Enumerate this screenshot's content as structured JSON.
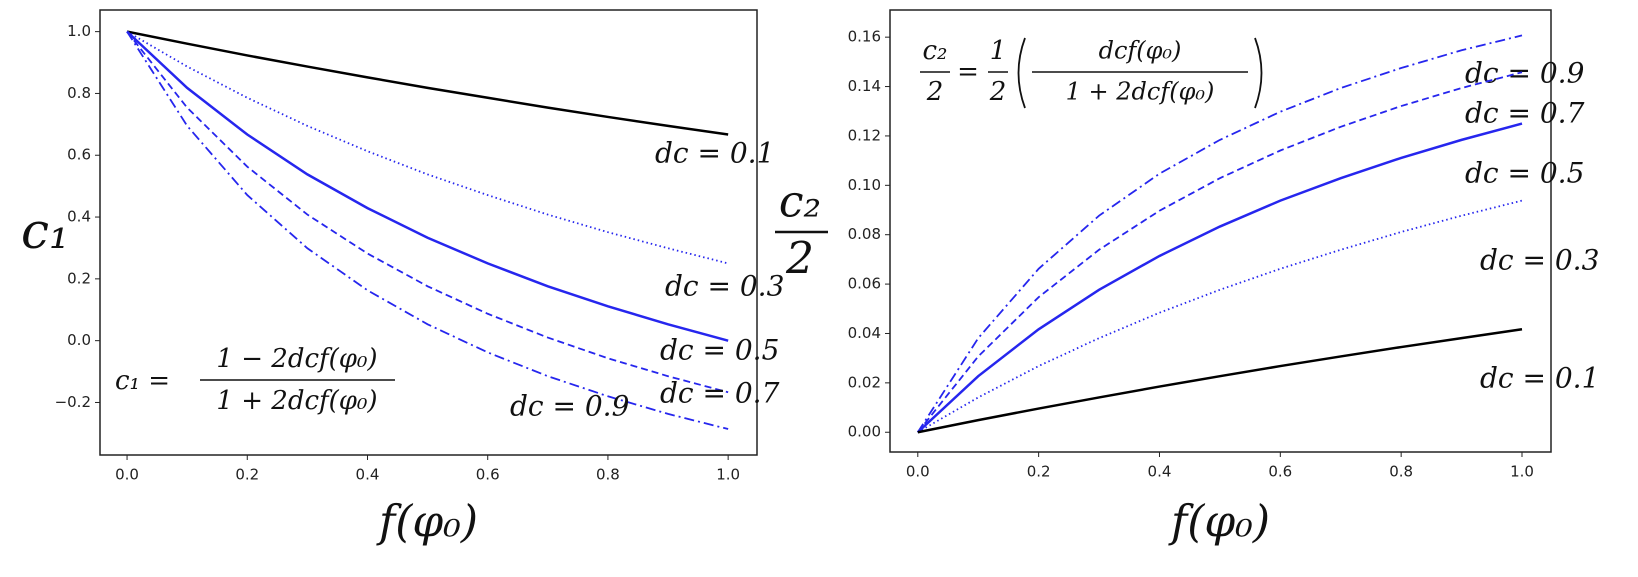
{
  "chart_data": [
    {
      "type": "line",
      "xlabel": "f(φ₀)",
      "ylabel": "c₁",
      "formula": {
        "lhs": "c₁ =",
        "numerator": "1 − 2dcf(φ₀)",
        "denominator": "1 + 2dcf(φ₀)"
      },
      "x": [
        0,
        0.1,
        0.2,
        0.3,
        0.4,
        0.5,
        0.6,
        0.7,
        0.8,
        0.9,
        1.0
      ],
      "xlim": [
        -0.045,
        1.048
      ],
      "ylim": [
        -0.37,
        1.07
      ],
      "xticks": [
        {
          "value": 0,
          "label": "0.0"
        },
        {
          "value": 0.2,
          "label": "0.2"
        },
        {
          "value": 0.4,
          "label": "0.4"
        },
        {
          "value": 0.6,
          "label": "0.6"
        },
        {
          "value": 0.8,
          "label": "0.8"
        },
        {
          "value": 1,
          "label": "1.0"
        }
      ],
      "yticks": [
        {
          "value": -0.2,
          "label": "−0.2"
        },
        {
          "value": 0,
          "label": "0.0"
        },
        {
          "value": 0.2,
          "label": "0.2"
        },
        {
          "value": 0.4,
          "label": "0.4"
        },
        {
          "value": 0.6,
          "label": "0.6"
        },
        {
          "value": 0.8,
          "label": "0.8"
        },
        {
          "value": 1,
          "label": "1.0"
        }
      ],
      "series": [
        {
          "name": "dc = 0.1",
          "color": "#000000",
          "linestyle": "solid",
          "values": [
            1,
            0.961,
            0.923,
            0.887,
            0.852,
            0.818,
            0.786,
            0.754,
            0.724,
            0.695,
            0.667
          ]
        },
        {
          "name": "dc = 0.3",
          "color": "#2626ee",
          "linestyle": "dotted",
          "values": [
            1,
            0.887,
            0.786,
            0.695,
            0.613,
            0.538,
            0.471,
            0.408,
            0.351,
            0.299,
            0.25
          ]
        },
        {
          "name": "dc = 0.5",
          "color": "#2626ee",
          "linestyle": "solid",
          "values": [
            1,
            0.818,
            0.667,
            0.538,
            0.429,
            0.333,
            0.25,
            0.176,
            0.111,
            0.053,
            0
          ]
        },
        {
          "name": "dc = 0.7",
          "color": "#2626ee",
          "linestyle": "dashed",
          "values": [
            1,
            0.754,
            0.563,
            0.408,
            0.282,
            0.176,
            0.087,
            0.01,
            -0.057,
            -0.115,
            -0.167
          ]
        },
        {
          "name": "dc = 0.9",
          "color": "#2626ee",
          "linestyle": "dashdot",
          "values": [
            1,
            0.695,
            0.471,
            0.299,
            0.163,
            0.053,
            -0.038,
            -0.115,
            -0.18,
            -0.237,
            -0.286
          ]
        }
      ]
    },
    {
      "type": "line",
      "xlabel": "f(φ₀)",
      "ylabel": {
        "numerator": "c₂",
        "denominator": "2"
      },
      "formula": {
        "lhs_numerator": "c₂",
        "lhs_denominator": "2",
        "equals": "=",
        "coef_numerator": "1",
        "coef_denominator": "2",
        "numerator": "dcf(φ₀)",
        "denominator": "1 + 2dcf(φ₀)"
      },
      "x": [
        0,
        0.1,
        0.2,
        0.3,
        0.4,
        0.5,
        0.6,
        0.7,
        0.8,
        0.9,
        1.0
      ],
      "xlim": [
        -0.046,
        1.048
      ],
      "ylim": [
        -0.008,
        0.171
      ],
      "xticks": [
        {
          "value": 0,
          "label": "0.0"
        },
        {
          "value": 0.2,
          "label": "0.2"
        },
        {
          "value": 0.4,
          "label": "0.4"
        },
        {
          "value": 0.6,
          "label": "0.6"
        },
        {
          "value": 0.8,
          "label": "0.8"
        },
        {
          "value": 1,
          "label": "1.0"
        }
      ],
      "yticks": [
        {
          "value": 0,
          "label": "0.00"
        },
        {
          "value": 0.02,
          "label": "0.02"
        },
        {
          "value": 0.04,
          "label": "0.04"
        },
        {
          "value": 0.06,
          "label": "0.06"
        },
        {
          "value": 0.08,
          "label": "0.08"
        },
        {
          "value": 0.1,
          "label": "0.10"
        },
        {
          "value": 0.12,
          "label": "0.12"
        },
        {
          "value": 0.14,
          "label": "0.14"
        },
        {
          "value": 0.16,
          "label": "0.16"
        }
      ],
      "series": [
        {
          "name": "dc = 0.9",
          "color": "#2626ee",
          "linestyle": "dashdot",
          "values": [
            0,
            0.0381,
            0.0662,
            0.0877,
            0.1047,
            0.1184,
            0.1298,
            0.1394,
            0.1475,
            0.1547,
            0.1607
          ]
        },
        {
          "name": "dc = 0.7",
          "color": "#2626ee",
          "linestyle": "dashed",
          "values": [
            0,
            0.0307,
            0.0547,
            0.0739,
            0.0897,
            0.1029,
            0.1141,
            0.1237,
            0.1321,
            0.1394,
            0.1458
          ]
        },
        {
          "name": "dc = 0.5",
          "color": "#2626ee",
          "linestyle": "solid",
          "values": [
            0,
            0.0227,
            0.0417,
            0.0577,
            0.0714,
            0.0833,
            0.0938,
            0.1029,
            0.1111,
            0.1184,
            0.125
          ]
        },
        {
          "name": "dc = 0.3",
          "color": "#2626ee",
          "linestyle": "dotted",
          "values": [
            0,
            0.0141,
            0.0268,
            0.0381,
            0.0484,
            0.0577,
            0.0662,
            0.0739,
            0.0811,
            0.0877,
            0.0938
          ]
        },
        {
          "name": "dc = 0.1",
          "color": "#000000",
          "linestyle": "solid",
          "values": [
            0,
            0.0049,
            0.0096,
            0.0141,
            0.0185,
            0.0227,
            0.0268,
            0.0307,
            0.0345,
            0.0381,
            0.0417
          ]
        }
      ]
    }
  ]
}
